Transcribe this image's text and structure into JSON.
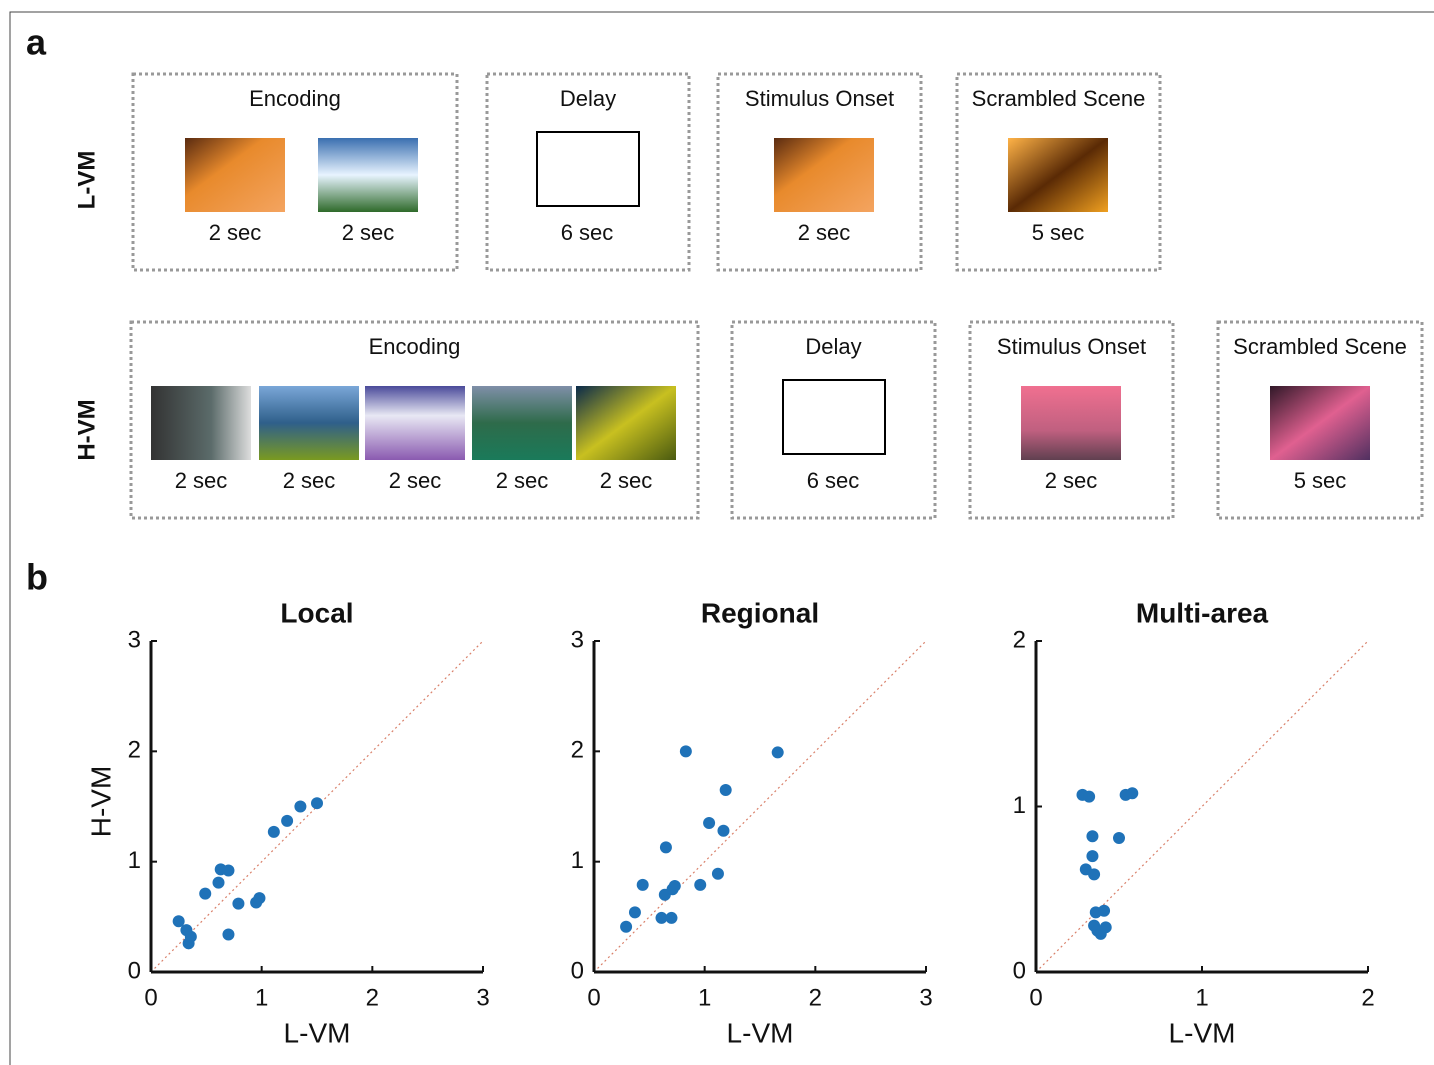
{
  "panel_a": {
    "label": "a",
    "rows": [
      {
        "label": "L-VM",
        "boxes": [
          {
            "title": "Encoding",
            "durations": [
              "2 sec",
              "2 sec"
            ]
          },
          {
            "title": "Delay",
            "durations": [
              "6 sec"
            ]
          },
          {
            "title": "Stimulus Onset",
            "durations": [
              "2 sec"
            ]
          },
          {
            "title": "Scrambled Scene",
            "durations": [
              "5 sec"
            ]
          }
        ]
      },
      {
        "label": "H-VM",
        "boxes": [
          {
            "title": "Encoding",
            "durations": [
              "2 sec",
              "2 sec",
              "2 sec",
              "2 sec",
              "2 sec"
            ]
          },
          {
            "title": "Delay",
            "durations": [
              "6 sec"
            ]
          },
          {
            "title": "Stimulus Onset",
            "durations": [
              "2 sec"
            ]
          },
          {
            "title": "Scrambled Scene",
            "durations": [
              "5 sec"
            ]
          }
        ]
      }
    ]
  },
  "panel_b": {
    "label": "b"
  },
  "chart_data": [
    {
      "type": "scatter",
      "title": "Local",
      "xlabel": "L-VM",
      "ylabel": "H-VM",
      "color": "#1f72b8",
      "xlim": [
        0,
        3
      ],
      "ylim": [
        0,
        3
      ],
      "xticks": [
        0,
        1,
        2,
        3
      ],
      "yticks": [
        0,
        1,
        2,
        3
      ],
      "x": [
        0.25,
        0.32,
        0.34,
        0.36,
        0.49,
        0.61,
        0.63,
        0.7,
        0.7,
        0.79,
        0.95,
        0.98,
        1.11,
        1.23,
        1.35,
        1.5
      ],
      "y": [
        0.46,
        0.38,
        0.26,
        0.32,
        0.71,
        0.81,
        0.93,
        0.92,
        0.34,
        0.62,
        0.63,
        0.67,
        1.27,
        1.37,
        1.5,
        1.53
      ]
    },
    {
      "type": "scatter",
      "title": "Regional",
      "xlabel": "L-VM",
      "color": "#1f72b8",
      "xlim": [
        0,
        3
      ],
      "ylim": [
        0,
        3
      ],
      "xticks": [
        0,
        1,
        2,
        3
      ],
      "yticks": [
        0,
        1,
        2,
        3
      ],
      "x": [
        0.29,
        0.37,
        0.44,
        0.61,
        0.64,
        0.65,
        0.7,
        0.71,
        0.73,
        0.83,
        0.96,
        1.04,
        1.12,
        1.17,
        1.19,
        1.66
      ],
      "y": [
        0.41,
        0.54,
        0.79,
        0.49,
        0.7,
        1.13,
        0.49,
        0.75,
        0.78,
        2.0,
        0.79,
        1.35,
        0.89,
        1.28,
        1.65,
        1.99
      ]
    },
    {
      "type": "scatter",
      "title": "Multi-area",
      "xlabel": "L-VM",
      "color": "#1f72b8",
      "xlim": [
        0,
        2
      ],
      "ylim": [
        0,
        2
      ],
      "xticks": [
        0,
        1,
        2
      ],
      "yticks": [
        0,
        1,
        2
      ],
      "x": [
        0.28,
        0.32,
        0.3,
        0.34,
        0.34,
        0.35,
        0.36,
        0.35,
        0.37,
        0.39,
        0.41,
        0.42,
        0.5,
        0.54,
        0.58
      ],
      "y": [
        1.07,
        1.06,
        0.62,
        0.82,
        0.7,
        0.59,
        0.36,
        0.28,
        0.25,
        0.23,
        0.37,
        0.27,
        0.81,
        1.07,
        1.08
      ]
    }
  ]
}
